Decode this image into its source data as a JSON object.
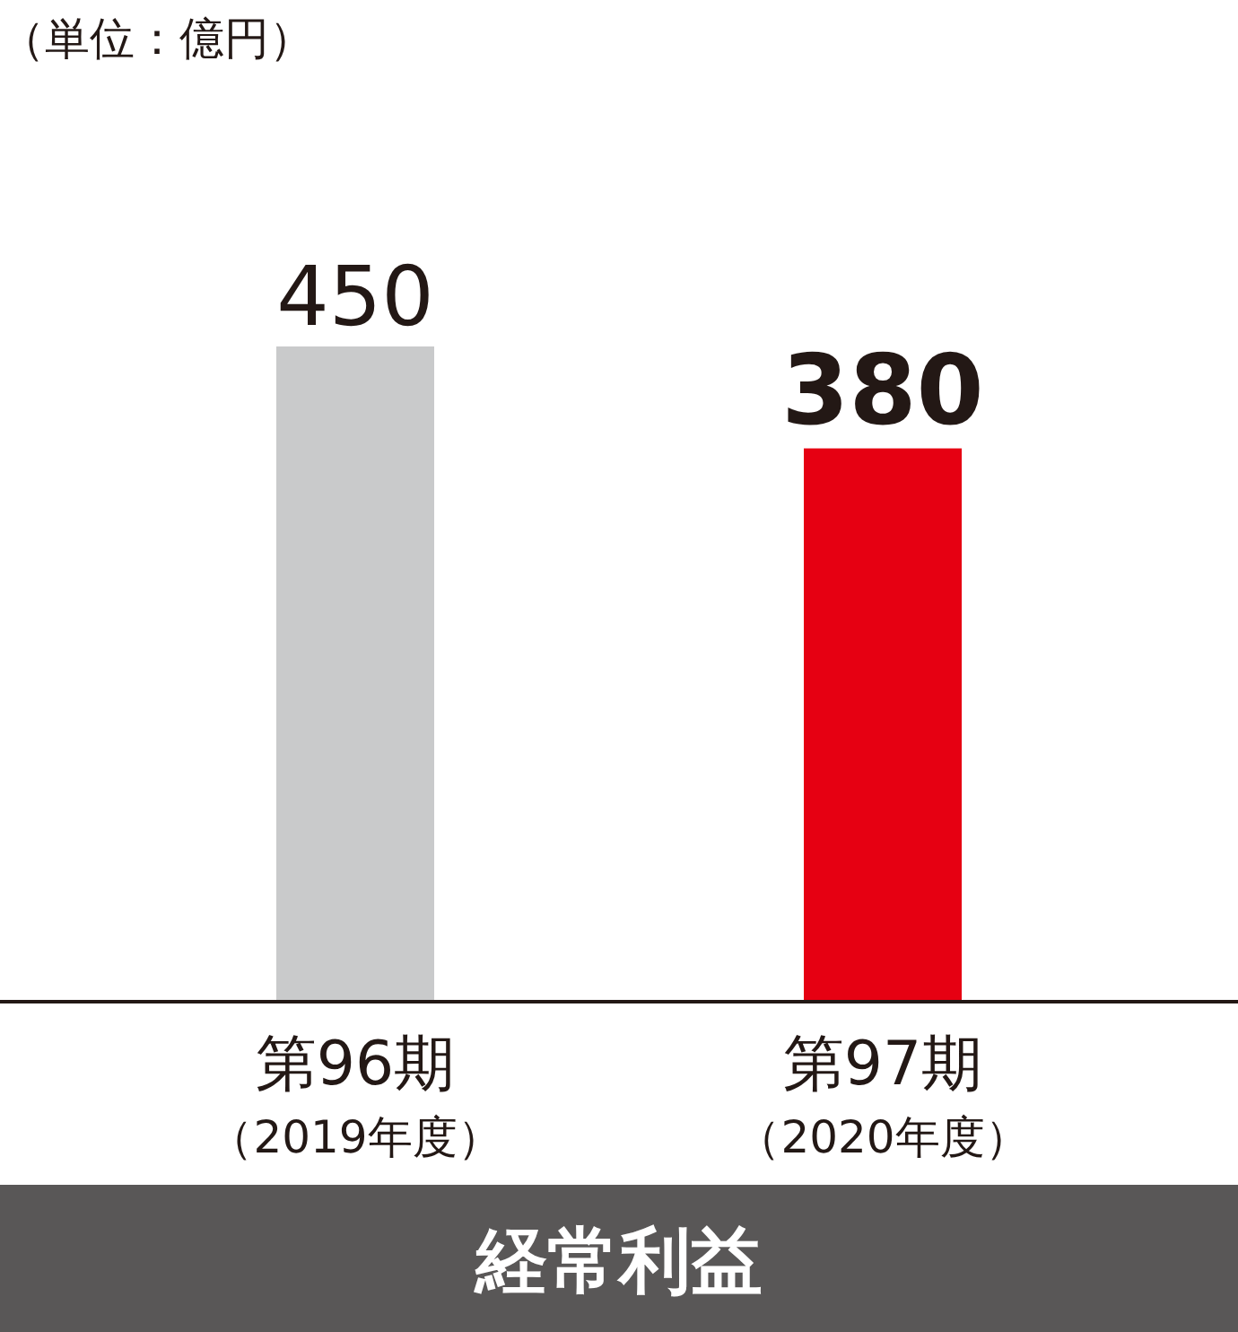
{
  "chart_data": {
    "type": "bar",
    "title": "経常利益",
    "categories": [
      "第96期（2019年度）",
      "第97期（2020年度）"
    ],
    "values": [
      450,
      380
    ],
    "colors": [
      "#c9cacb",
      "#e60012"
    ],
    "data_labels": true,
    "annotations": [
      "（単位：億円）"
    ]
  }
}
